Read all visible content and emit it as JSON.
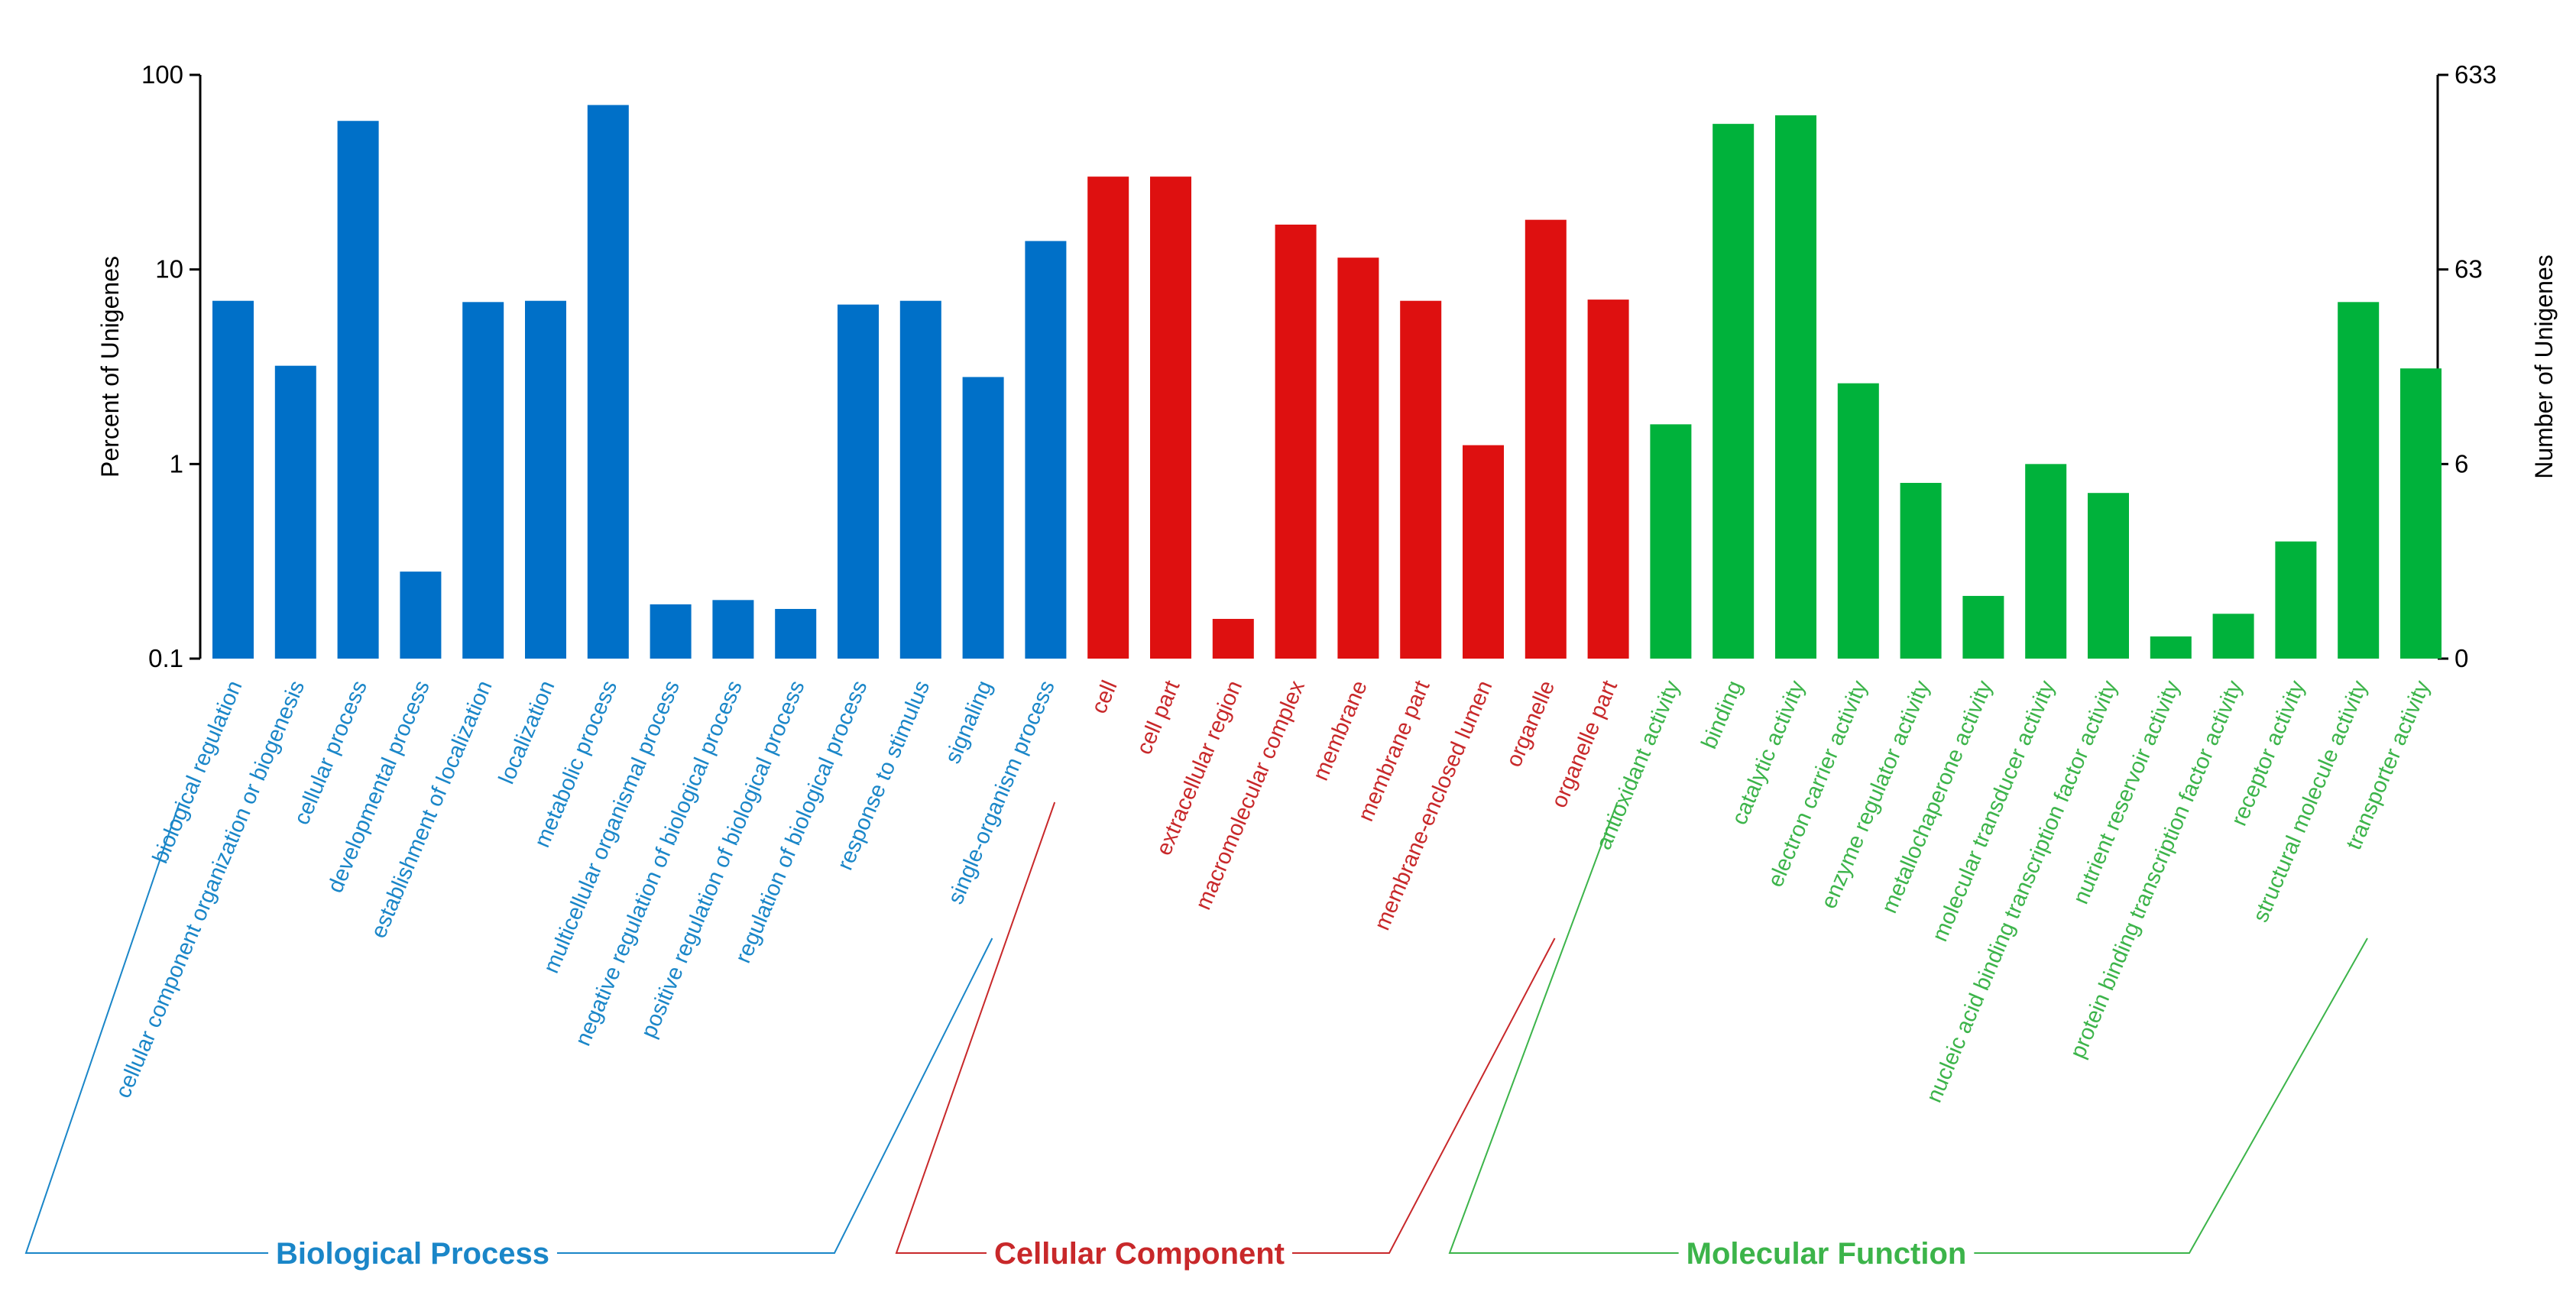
{
  "chart_data": {
    "type": "bar",
    "y_scale": "log",
    "left_axis": {
      "label": "Percent of Unigenes",
      "range": [
        0.1,
        100
      ],
      "ticks": [
        {
          "value": 0.1,
          "label": "0.1"
        },
        {
          "value": 1,
          "label": "1"
        },
        {
          "value": 10,
          "label": "10"
        },
        {
          "value": 100,
          "label": "100"
        }
      ]
    },
    "right_axis": {
      "label": "Number of Unigenes",
      "ticks": [
        {
          "value": 0.1,
          "label": "0"
        },
        {
          "value": 1,
          "label": "6"
        },
        {
          "value": 10,
          "label": "63"
        },
        {
          "value": 100,
          "label": "633"
        }
      ]
    },
    "groups": [
      {
        "name": "Biological Process",
        "color": "#0070C8",
        "label_color": "#1A86C8",
        "categories": [
          {
            "label": "biological regulation",
            "value": 6.9
          },
          {
            "label": "cellular component organization or biogenesis",
            "value": 3.2
          },
          {
            "label": "cellular process",
            "value": 58
          },
          {
            "label": "developmental process",
            "value": 0.28
          },
          {
            "label": "establishment of localization",
            "value": 6.8
          },
          {
            "label": "localization",
            "value": 6.9
          },
          {
            "label": "metabolic process",
            "value": 70
          },
          {
            "label": "multicellular organismal process",
            "value": 0.19
          },
          {
            "label": "negative regulation of biological process",
            "value": 0.2
          },
          {
            "label": "positive regulation of biological process",
            "value": 0.18
          },
          {
            "label": "regulation of biological process",
            "value": 6.6
          },
          {
            "label": "response to stimulus",
            "value": 6.9
          },
          {
            "label": "signaling",
            "value": 2.8
          },
          {
            "label": "single-organism process",
            "value": 14
          }
        ]
      },
      {
        "name": "Cellular Component",
        "color": "#DE1010",
        "label_color": "#C8282A",
        "categories": [
          {
            "label": "cell",
            "value": 30
          },
          {
            "label": "cell part",
            "value": 30
          },
          {
            "label": "extracellular region",
            "value": 0.16
          },
          {
            "label": "macromolecular complex",
            "value": 17
          },
          {
            "label": "membrane",
            "value": 11.5
          },
          {
            "label": "membrane part",
            "value": 6.9
          },
          {
            "label": "membrane-enclosed lumen",
            "value": 1.25
          },
          {
            "label": "organelle",
            "value": 18
          },
          {
            "label": "organelle part",
            "value": 7
          }
        ]
      },
      {
        "name": "Molecular Function",
        "color": "#00B23B",
        "label_color": "#3CB44A",
        "categories": [
          {
            "label": "antioxidant activity",
            "value": 1.6
          },
          {
            "label": "binding",
            "value": 56
          },
          {
            "label": "catalytic activity",
            "value": 62
          },
          {
            "label": "electron carrier activity",
            "value": 2.6
          },
          {
            "label": "enzyme regulator activity",
            "value": 0.8
          },
          {
            "label": "metallochaperone activity",
            "value": 0.21
          },
          {
            "label": "molecular transducer activity",
            "value": 1.0
          },
          {
            "label": "nucleic acid binding transcription factor activity",
            "value": 0.71
          },
          {
            "label": "nutrient reservoir activity",
            "value": 0.13
          },
          {
            "label": "protein binding transcription factor activity",
            "value": 0.17
          },
          {
            "label": "receptor activity",
            "value": 0.4
          },
          {
            "label": "structural molecule activity",
            "value": 6.8
          },
          {
            "label": "transporter activity",
            "value": 3.1
          }
        ]
      }
    ]
  }
}
